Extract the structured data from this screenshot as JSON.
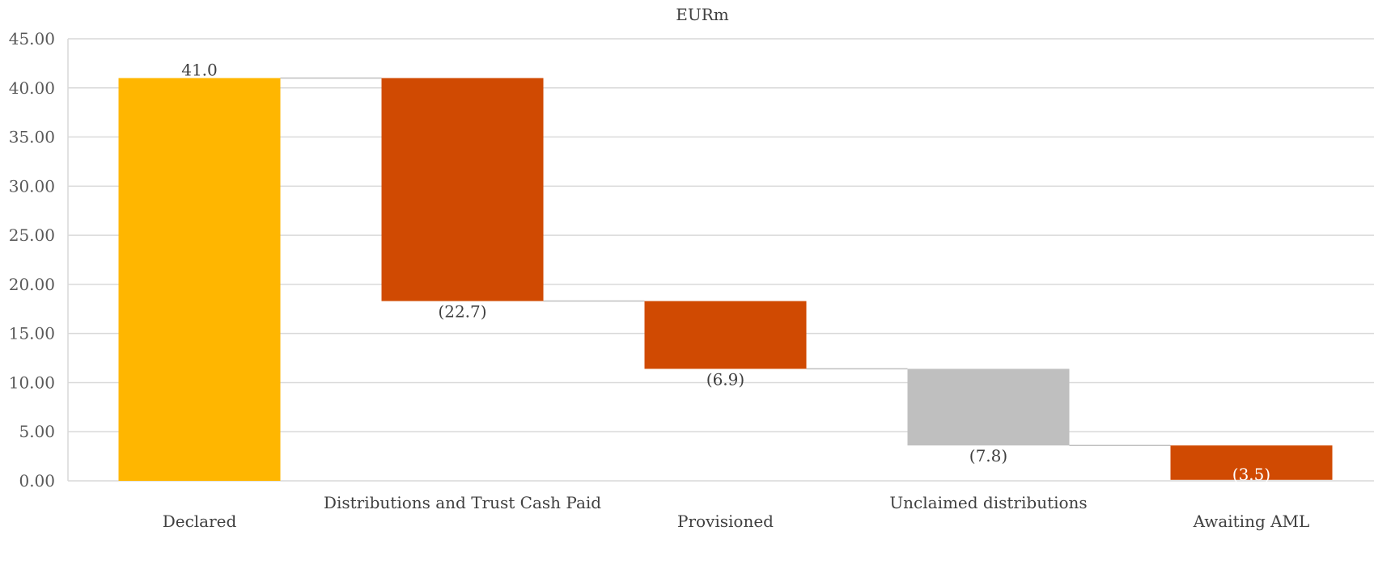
{
  "chart_data": {
    "type": "bar",
    "subtype": "waterfall",
    "unit_label": "EURm",
    "ylim": [
      0,
      45
    ],
    "y_ticks": [
      "0.00",
      "5.00",
      "10.00",
      "15.00",
      "20.00",
      "25.00",
      "30.00",
      "35.00",
      "40.00",
      "45.00"
    ],
    "grid": true,
    "legend": "none",
    "categories": [
      "Declared",
      "Distributions and Trust Cash Paid",
      "Provisioned",
      "Unclaimed distributions",
      "Awaiting AML"
    ],
    "values": [
      41.0,
      -22.7,
      -6.9,
      -7.8,
      -3.5
    ],
    "data_labels": [
      "41.0",
      "(22.7)",
      "(6.9)",
      "(7.8)",
      "(3.5)"
    ],
    "colors": [
      "#FFB600",
      "#D04A02",
      "#D04A02",
      "#BFBFBF",
      "#D04A02"
    ]
  }
}
